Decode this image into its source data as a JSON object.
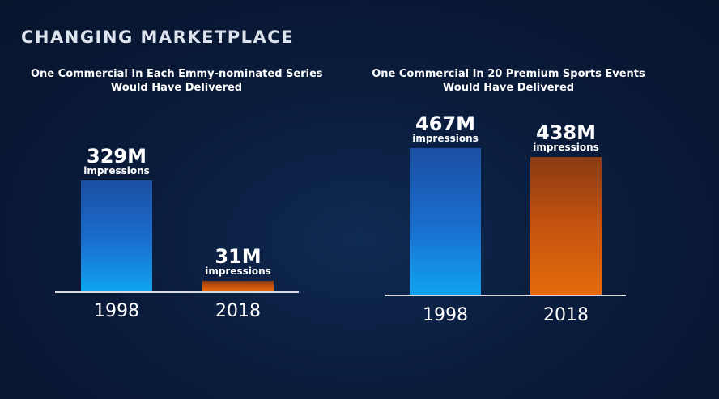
{
  "page": {
    "title": "CHANGING MARKETPLACE"
  },
  "colors": {
    "blue_bar": "#1a6fcf",
    "orange_bar": "#e46a0a",
    "background": "#0a1c3c"
  },
  "chart_data": [
    {
      "type": "bar",
      "title_line1": "One Commercial In Each Emmy-nominated Series",
      "title_line2": "Would Have Delivered",
      "categories": [
        "1998",
        "2018"
      ],
      "values": [
        329,
        31
      ],
      "value_labels": [
        "329M",
        "31M"
      ],
      "unit_label": "impressions",
      "colors": [
        "#1a6fcf",
        "#e46a0a"
      ]
    },
    {
      "type": "bar",
      "title_line1": "One Commercial In 20 Premium Sports Events",
      "title_line2": "Would Have Delivered",
      "categories": [
        "1998",
        "2018"
      ],
      "values": [
        467,
        438
      ],
      "value_labels": [
        "467M",
        "438M"
      ],
      "unit_label": "impressions",
      "colors": [
        "#1a6fcf",
        "#e46a0a"
      ]
    }
  ]
}
